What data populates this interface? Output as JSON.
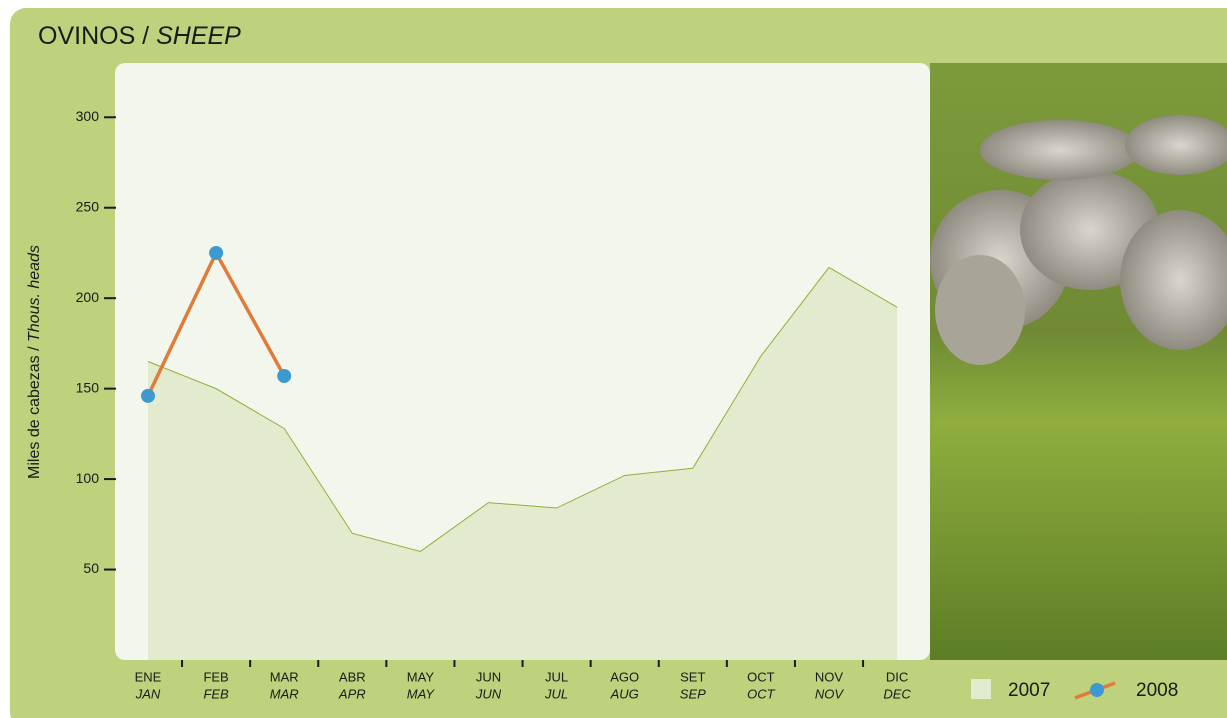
{
  "chart_data": {
    "type": "area_line",
    "title": "OVINOS / ",
    "title_en": "SHEEP",
    "y_label": "Miles de cabezas / ",
    "y_label_en": "Thous. heads",
    "categories": [
      "ENE",
      "FEB",
      "MAR",
      "ABR",
      "MAY",
      "JUN",
      "JUL",
      "AGO",
      "SET",
      "OCT",
      "NOV",
      "DIC"
    ],
    "categories_en": [
      "JAN",
      "FEB",
      "MAR",
      "APR",
      "MAY",
      "JUN",
      "JUL",
      "AUG",
      "SEP",
      "OCT",
      "NOV",
      "DEC"
    ],
    "series": [
      {
        "name": "2007",
        "kind": "area",
        "color": "#e3ebcf",
        "line_color": "#8fb03a",
        "values": [
          165,
          150,
          128,
          70,
          60,
          87,
          84,
          102,
          106,
          168,
          217,
          195
        ]
      },
      {
        "name": "2008",
        "kind": "line",
        "color": "#e07b39",
        "marker_color": "#3d9ad1",
        "values": [
          146,
          225,
          157,
          null,
          null,
          null,
          null,
          null,
          null,
          null,
          null,
          null
        ]
      }
    ],
    "ylim": [
      0,
      330
    ],
    "yticks": [
      50,
      100,
      150,
      200,
      250,
      300
    ]
  }
}
